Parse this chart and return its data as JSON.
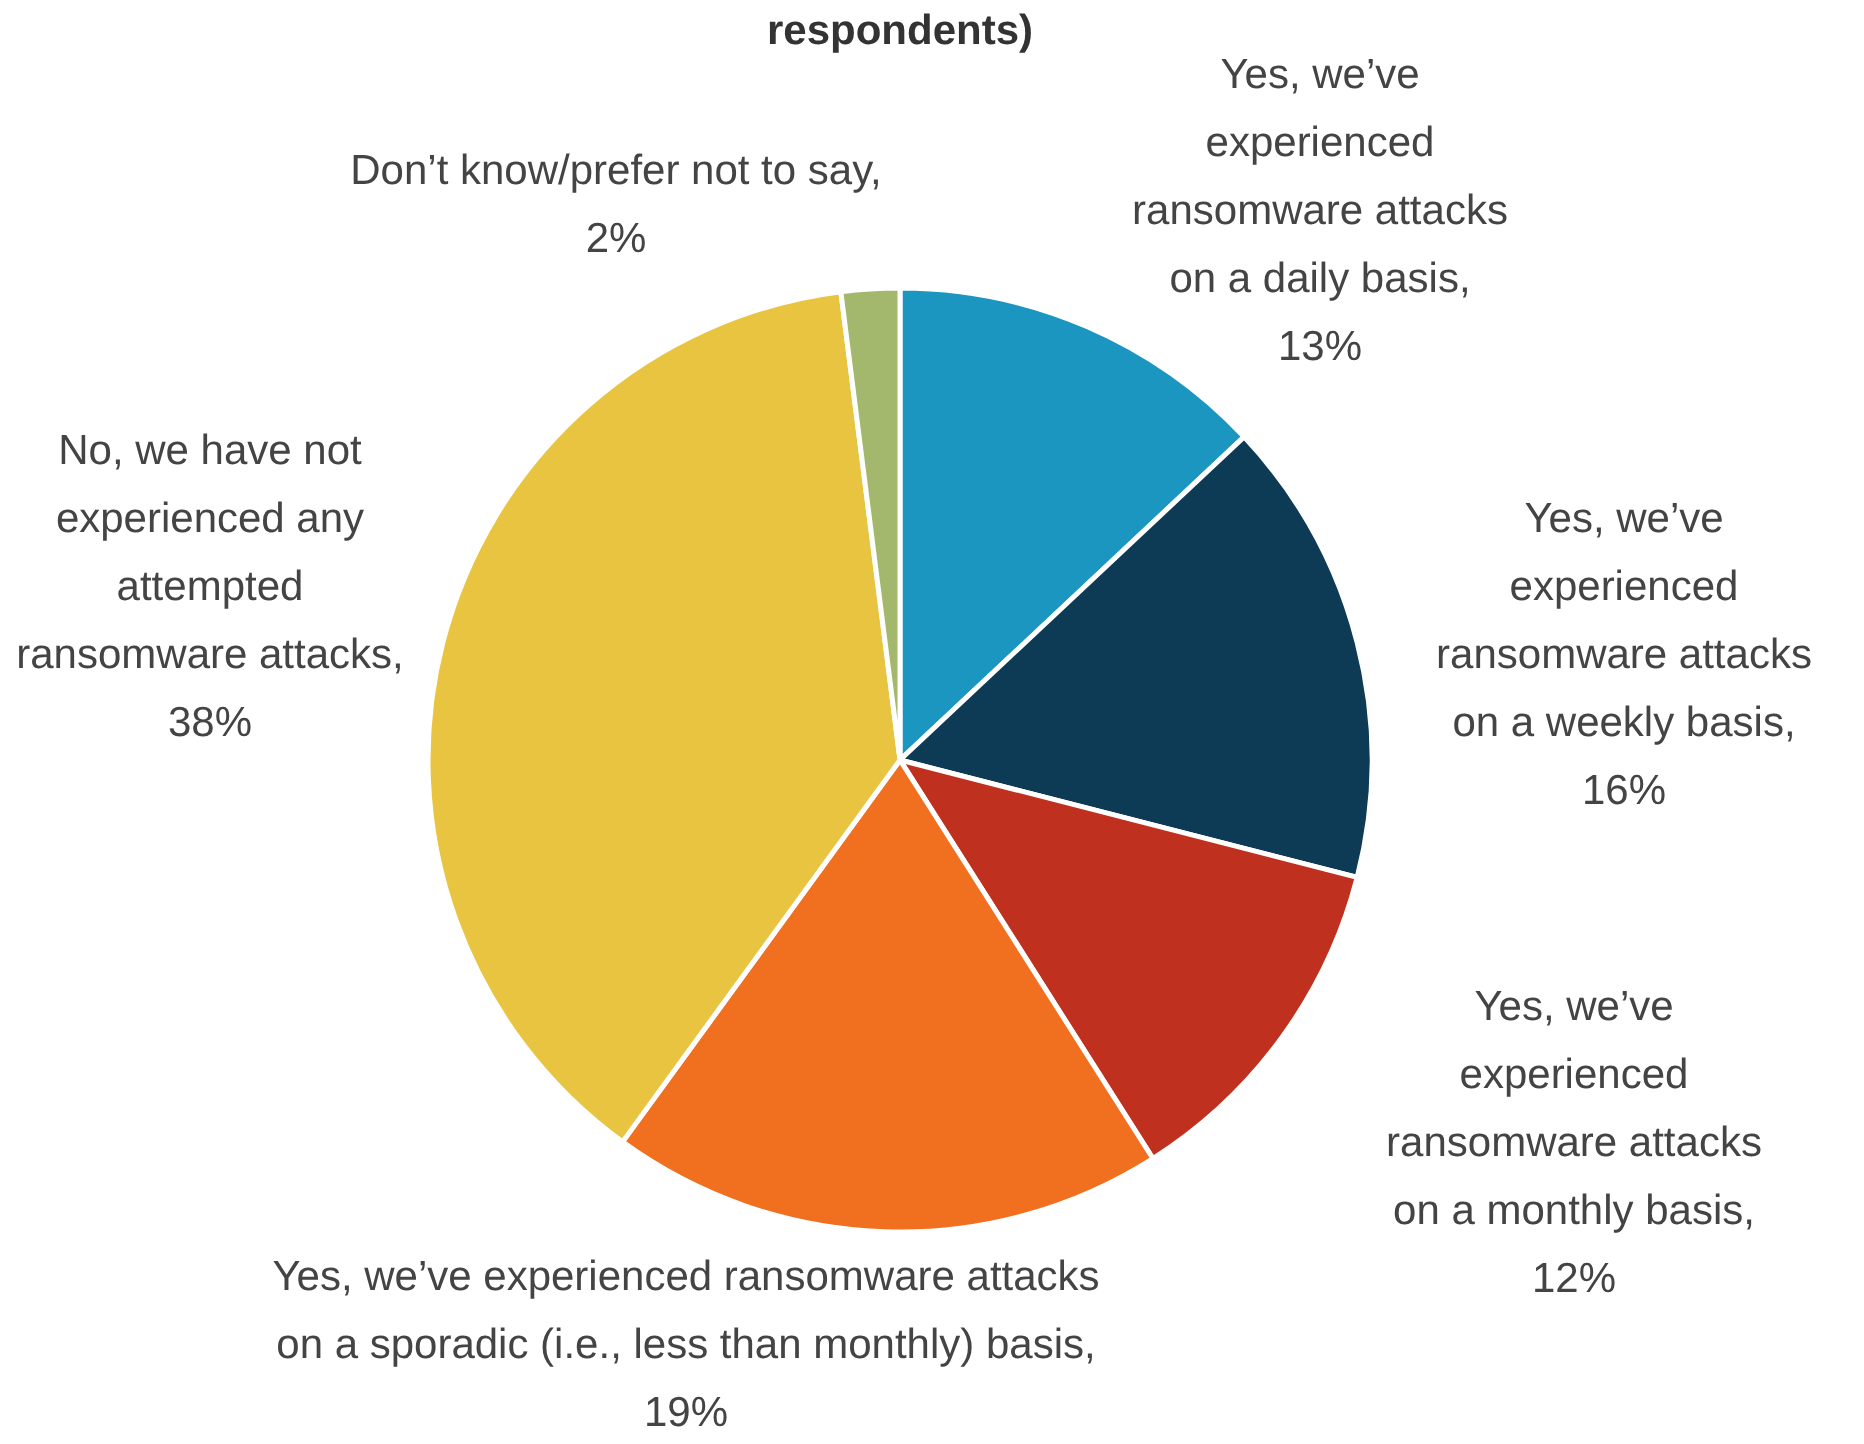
{
  "chart_data": {
    "type": "pie",
    "title": "respondents)",
    "categories": [
      "Yes, we’ve experienced ransomware attacks on a daily basis, 13%",
      "Yes, we’ve experienced ransomware attacks on a weekly basis, 16%",
      "Yes, we’ve experienced ransomware attacks on a monthly basis, 12%",
      "Yes, we’ve experienced ransomware attacks on a sporadic (i.e., less than monthly) basis, 19%",
      "No, we have not experienced any attempted ransomware attacks, 38%",
      "Don’t know/prefer not to say, 2%"
    ],
    "values": [
      13,
      16,
      12,
      19,
      38,
      2
    ],
    "colors": [
      "#1a96c0",
      "#0d3b55",
      "#c0301f",
      "#f07020",
      "#e9c440",
      "#a3b86c"
    ]
  }
}
